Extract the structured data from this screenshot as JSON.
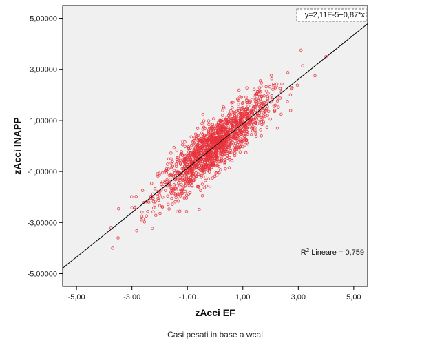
{
  "chart_data": {
    "type": "scatter",
    "xlabel": "zAcci EF",
    "ylabel": "zAcci INAPP",
    "footnote": "Casi pesati in base a wcal",
    "x_tick_labels": [
      "-5,00",
      "-3,00",
      "-1,00",
      "1,00",
      "3,00",
      "5,00"
    ],
    "y_tick_labels": [
      "5,00000",
      "3,00000",
      "1,00000",
      "-1,00000",
      "-3,00000",
      "-5,00000"
    ],
    "x_ticks": [
      -5,
      -3,
      -1,
      1,
      3,
      5
    ],
    "y_ticks": [
      5,
      3,
      1,
      -1,
      -3,
      -5
    ],
    "xlim": [
      -5.5,
      5.5
    ],
    "ylim": [
      -5.5,
      5.5
    ],
    "fit_line": {
      "intercept": 2.11e-05,
      "slope": 0.87
    },
    "equation_label": "y=2,11E-5+0,87*x",
    "r2_label": "R",
    "r2_sup": "2",
    "r2_suffix": " Lineare = 0,759",
    "n_points_approx": 1500,
    "correlation_approx": 0.87,
    "point_color": "#e8303a",
    "notable_points": [
      {
        "x": -3.7,
        "y": -4.0
      },
      {
        "x": -3.5,
        "y": -3.6
      },
      {
        "x": 3.1,
        "y": 3.75
      },
      {
        "x": 4.0,
        "y": 3.5
      },
      {
        "x": 3.6,
        "y": 2.75
      },
      {
        "x": -2.6,
        "y": -2.85
      }
    ],
    "grid": false
  }
}
